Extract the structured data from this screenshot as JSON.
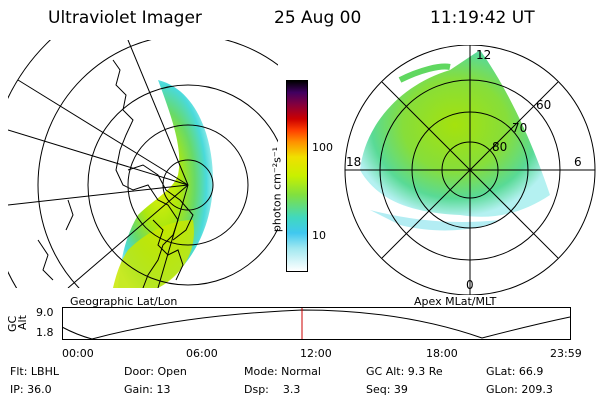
{
  "header": {
    "title": "Ultraviolet Imager",
    "date": "25 Aug 00",
    "time": "11:19:42 UT"
  },
  "left_panel": {
    "caption": "Geographic Lat/Lon"
  },
  "right_panel": {
    "caption": "Apex MLat/MLT",
    "mlt_labels": {
      "top": "12",
      "right": "6",
      "bottom": "0",
      "left": "18"
    },
    "mlat_labels": [
      "60",
      "70",
      "80"
    ]
  },
  "colorbar": {
    "unit_label": "photon cm⁻²s⁻¹",
    "ticks": [
      "100",
      "10"
    ]
  },
  "altitude_plot": {
    "ylabel_line1": "GC",
    "ylabel_line2": "Alt",
    "yticks": [
      "9.0",
      "1.8"
    ],
    "xticks": [
      "00:00",
      "06:00",
      "12:00",
      "18:00",
      "23:59"
    ]
  },
  "info": {
    "row1": [
      "Flt: LBHL",
      "Door: Open",
      "Mode: Normal",
      "GC Alt: 9.3 Re",
      "GLat:  66.9"
    ],
    "row2": [
      "IP: 36.0",
      "Gain: 13",
      "Dsp:    3.3",
      "Seq: 39",
      "GLon: 209.3"
    ]
  },
  "colors": {
    "aurora_high": "#c8e600",
    "aurora_mid": "#78e040",
    "aurora_low": "#40e0d0",
    "aurora_faint": "#b0f0f0",
    "marker": "#cc0000"
  }
}
